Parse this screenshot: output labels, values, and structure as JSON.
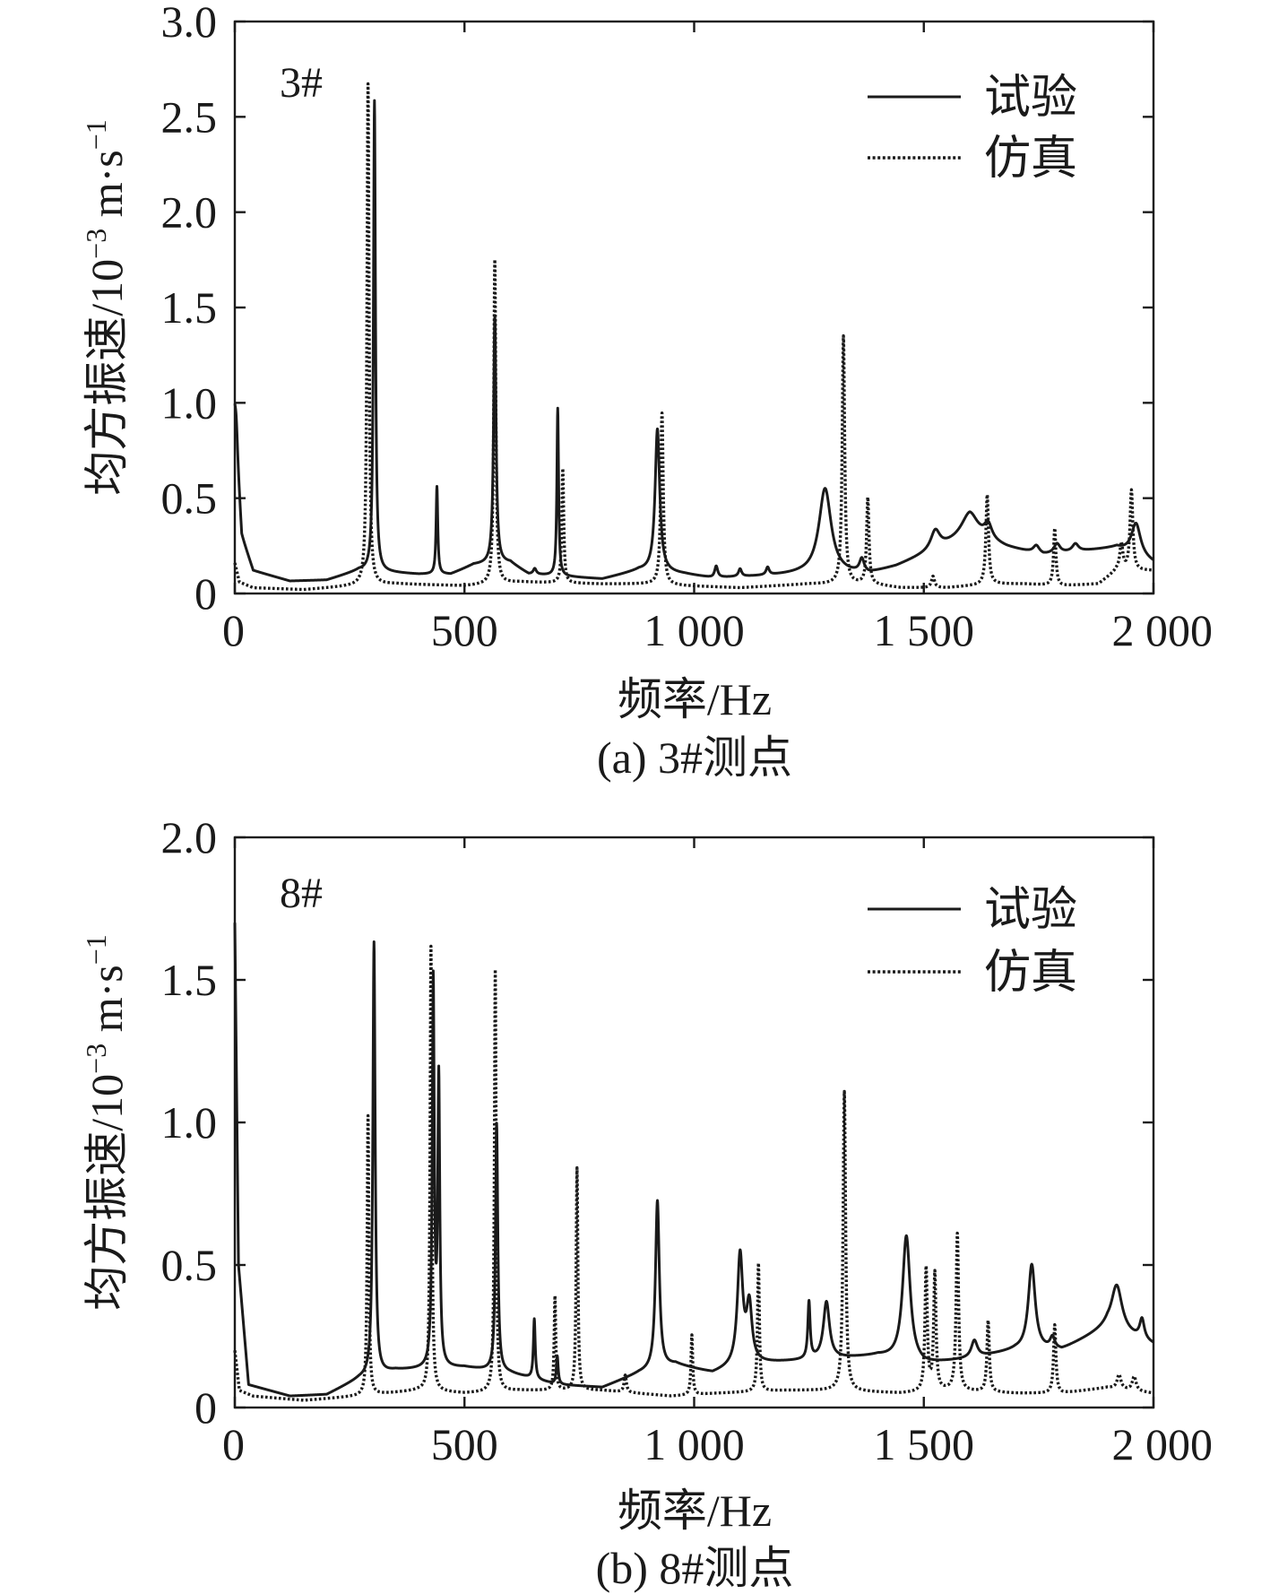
{
  "chart_data": [
    {
      "type": "line",
      "panel_label": "3#",
      "caption": "(a) 3#测点",
      "xlabel": "频率/Hz",
      "ylabel": "均方振速/10",
      "ylabel_exp": "−3",
      "ylabel_unit": " m·s",
      "ylabel_unit_exp": "−1",
      "xlim": [
        0,
        2000
      ],
      "ylim": [
        0,
        3.0
      ],
      "xticks": [
        0,
        500,
        1000,
        1500,
        2000
      ],
      "xtick_labels": [
        "0",
        "500",
        "1 000",
        "1 500",
        "2 000"
      ],
      "yticks": [
        0,
        0.5,
        1.0,
        1.5,
        2.0,
        2.5,
        3.0
      ],
      "ytick_labels": [
        "0",
        "0.5",
        "1.0",
        "1.5",
        "2.0",
        "2.5",
        "3.0"
      ],
      "legend_position": "top-right",
      "series": [
        {
          "name": "试验",
          "style": "solid",
          "baseline": [
            [
              0,
              0.9
            ],
            [
              15,
              0.3
            ],
            [
              40,
              0.12
            ],
            [
              120,
              0.065
            ],
            [
              200,
              0.07
            ],
            [
              270,
              0.12
            ],
            [
              400,
              0.1
            ],
            [
              470,
              0.1
            ],
            [
              520,
              0.15
            ],
            [
              600,
              0.16
            ],
            [
              640,
              0.1
            ],
            [
              800,
              0.075
            ],
            [
              880,
              0.12
            ],
            [
              980,
              0.1
            ],
            [
              1040,
              0.08
            ],
            [
              1150,
              0.09
            ],
            [
              1230,
              0.1
            ],
            [
              1380,
              0.1
            ],
            [
              1440,
              0.14
            ],
            [
              1520,
              0.22
            ],
            [
              1600,
              0.3
            ],
            [
              1680,
              0.24
            ],
            [
              1760,
              0.2
            ],
            [
              1840,
              0.22
            ],
            [
              1920,
              0.24
            ],
            [
              2000,
              0.16
            ]
          ],
          "peaks": [
            {
              "f": 3,
              "a": 0.15,
              "w": 4
            },
            {
              "f": 304,
              "a": 2.47,
              "w": 2.6
            },
            {
              "f": 440,
              "a": 0.46,
              "w": 2.2
            },
            {
              "f": 566,
              "a": 1.3,
              "w": 3.2
            },
            {
              "f": 653,
              "a": 0.03,
              "w": 4
            },
            {
              "f": 703,
              "a": 0.88,
              "w": 2.2
            },
            {
              "f": 920,
              "a": 0.75,
              "w": 6
            },
            {
              "f": 1048,
              "a": 0.06,
              "w": 4
            },
            {
              "f": 1100,
              "a": 0.04,
              "w": 4
            },
            {
              "f": 1160,
              "a": 0.04,
              "w": 4
            },
            {
              "f": 1285,
              "a": 0.45,
              "w": 16
            },
            {
              "f": 1365,
              "a": 0.07,
              "w": 6
            },
            {
              "f": 1525,
              "a": 0.1,
              "w": 12
            },
            {
              "f": 1600,
              "a": 0.12,
              "w": 22
            },
            {
              "f": 1640,
              "a": 0.08,
              "w": 10
            },
            {
              "f": 1745,
              "a": 0.04,
              "w": 8
            },
            {
              "f": 1790,
              "a": 0.05,
              "w": 8
            },
            {
              "f": 1830,
              "a": 0.04,
              "w": 8
            },
            {
              "f": 1962,
              "a": 0.17,
              "w": 12
            }
          ]
        },
        {
          "name": "仿真",
          "style": "dotted",
          "baseline": [
            [
              0,
              0.16
            ],
            [
              10,
              0.06
            ],
            [
              40,
              0.03
            ],
            [
              150,
              0.02
            ],
            [
              260,
              0.04
            ],
            [
              350,
              0.05
            ],
            [
              500,
              0.04
            ],
            [
              620,
              0.06
            ],
            [
              800,
              0.05
            ],
            [
              900,
              0.05
            ],
            [
              980,
              0.04
            ],
            [
              1100,
              0.03
            ],
            [
              1250,
              0.05
            ],
            [
              1380,
              0.05
            ],
            [
              1450,
              0.03
            ],
            [
              1550,
              0.03
            ],
            [
              1650,
              0.05
            ],
            [
              1720,
              0.05
            ],
            [
              1800,
              0.04
            ],
            [
              1880,
              0.05
            ],
            [
              1920,
              0.12
            ],
            [
              2000,
              0.12
            ]
          ],
          "peaks": [
            {
              "f": 290,
              "a": 2.63,
              "w": 2.6
            },
            {
              "f": 566,
              "a": 1.7,
              "w": 2.6
            },
            {
              "f": 714,
              "a": 0.6,
              "w": 2.4
            },
            {
              "f": 930,
              "a": 0.9,
              "w": 3.2
            },
            {
              "f": 1325,
              "a": 1.3,
              "w": 3.2
            },
            {
              "f": 1378,
              "a": 0.45,
              "w": 3
            },
            {
              "f": 1520,
              "a": 0.06,
              "w": 4
            },
            {
              "f": 1638,
              "a": 0.47,
              "w": 3.4
            },
            {
              "f": 1785,
              "a": 0.3,
              "w": 3
            },
            {
              "f": 1930,
              "a": 0.14,
              "w": 4
            },
            {
              "f": 1952,
              "a": 0.42,
              "w": 3.6
            }
          ]
        }
      ]
    },
    {
      "type": "line",
      "panel_label": "8#",
      "caption": "(b) 8#测点",
      "xlabel": "频率/Hz",
      "ylabel": "均方振速/10",
      "ylabel_exp": "−3",
      "ylabel_unit": " m·s",
      "ylabel_unit_exp": "−1",
      "xlim": [
        0,
        2000
      ],
      "ylim": [
        0,
        2.0
      ],
      "xticks": [
        0,
        500,
        1000,
        1500,
        2000
      ],
      "xtick_labels": [
        "0",
        "500",
        "1 000",
        "1 500",
        "2 000"
      ],
      "yticks": [
        0,
        0.5,
        1.0,
        1.5,
        2.0
      ],
      "ytick_labels": [
        "0",
        "0.5",
        "1.0",
        "1.5",
        "2.0"
      ],
      "legend_position": "top-right",
      "series": [
        {
          "name": "试验",
          "style": "solid",
          "baseline": [
            [
              0,
              1.7
            ],
            [
              8,
              0.5
            ],
            [
              30,
              0.08
            ],
            [
              120,
              0.04
            ],
            [
              200,
              0.045
            ],
            [
              270,
              0.1
            ],
            [
              350,
              0.13
            ],
            [
              500,
              0.14
            ],
            [
              600,
              0.12
            ],
            [
              700,
              0.08
            ],
            [
              800,
              0.07
            ],
            [
              880,
              0.12
            ],
            [
              960,
              0.15
            ],
            [
              1040,
              0.12
            ],
            [
              1100,
              0.15
            ],
            [
              1200,
              0.16
            ],
            [
              1300,
              0.17
            ],
            [
              1400,
              0.18
            ],
            [
              1500,
              0.15
            ],
            [
              1600,
              0.17
            ],
            [
              1700,
              0.2
            ],
            [
              1800,
              0.2
            ],
            [
              1900,
              0.28
            ],
            [
              2000,
              0.22
            ]
          ],
          "peaks": [
            {
              "f": 303,
              "a": 1.52,
              "w": 3
            },
            {
              "f": 432,
              "a": 1.35,
              "w": 2.6
            },
            {
              "f": 444,
              "a": 1.0,
              "w": 2.6
            },
            {
              "f": 570,
              "a": 0.87,
              "w": 3
            },
            {
              "f": 652,
              "a": 0.21,
              "w": 2.4
            },
            {
              "f": 702,
              "a": 0.1,
              "w": 2.4
            },
            {
              "f": 920,
              "a": 0.59,
              "w": 5
            },
            {
              "f": 1100,
              "a": 0.38,
              "w": 7
            },
            {
              "f": 1120,
              "a": 0.2,
              "w": 7
            },
            {
              "f": 1250,
              "a": 0.2,
              "w": 3
            },
            {
              "f": 1288,
              "a": 0.2,
              "w": 8
            },
            {
              "f": 1462,
              "a": 0.44,
              "w": 10
            },
            {
              "f": 1610,
              "a": 0.06,
              "w": 8
            },
            {
              "f": 1735,
              "a": 0.3,
              "w": 9
            },
            {
              "f": 1780,
              "a": 0.04,
              "w": 6
            },
            {
              "f": 1920,
              "a": 0.16,
              "w": 14
            },
            {
              "f": 1975,
              "a": 0.07,
              "w": 6
            }
          ]
        },
        {
          "name": "仿真",
          "style": "dotted",
          "baseline": [
            [
              0,
              0.2
            ],
            [
              10,
              0.06
            ],
            [
              40,
              0.04
            ],
            [
              150,
              0.025
            ],
            [
              270,
              0.04
            ],
            [
              400,
              0.06
            ],
            [
              500,
              0.05
            ],
            [
              620,
              0.06
            ],
            [
              800,
              0.06
            ],
            [
              950,
              0.04
            ],
            [
              1050,
              0.05
            ],
            [
              1200,
              0.06
            ],
            [
              1300,
              0.06
            ],
            [
              1450,
              0.05
            ],
            [
              1550,
              0.06
            ],
            [
              1700,
              0.05
            ],
            [
              1800,
              0.05
            ],
            [
              1900,
              0.07
            ],
            [
              2000,
              0.05
            ]
          ],
          "peaks": [
            {
              "f": 290,
              "a": 0.98,
              "w": 2.2
            },
            {
              "f": 427,
              "a": 1.56,
              "w": 2.2
            },
            {
              "f": 567,
              "a": 1.48,
              "w": 2.2
            },
            {
              "f": 697,
              "a": 0.33,
              "w": 2
            },
            {
              "f": 745,
              "a": 0.78,
              "w": 2.2
            },
            {
              "f": 850,
              "a": 0.06,
              "w": 3
            },
            {
              "f": 995,
              "a": 0.21,
              "w": 2.2
            },
            {
              "f": 1140,
              "a": 0.45,
              "w": 2.4
            },
            {
              "f": 1327,
              "a": 1.05,
              "w": 3.2
            },
            {
              "f": 1505,
              "a": 0.43,
              "w": 3
            },
            {
              "f": 1524,
              "a": 0.41,
              "w": 3
            },
            {
              "f": 1573,
              "a": 0.55,
              "w": 3.2
            },
            {
              "f": 1640,
              "a": 0.25,
              "w": 3
            },
            {
              "f": 1785,
              "a": 0.24,
              "w": 3
            },
            {
              "f": 1925,
              "a": 0.05,
              "w": 5
            },
            {
              "f": 1958,
              "a": 0.05,
              "w": 5
            }
          ]
        }
      ]
    }
  ]
}
